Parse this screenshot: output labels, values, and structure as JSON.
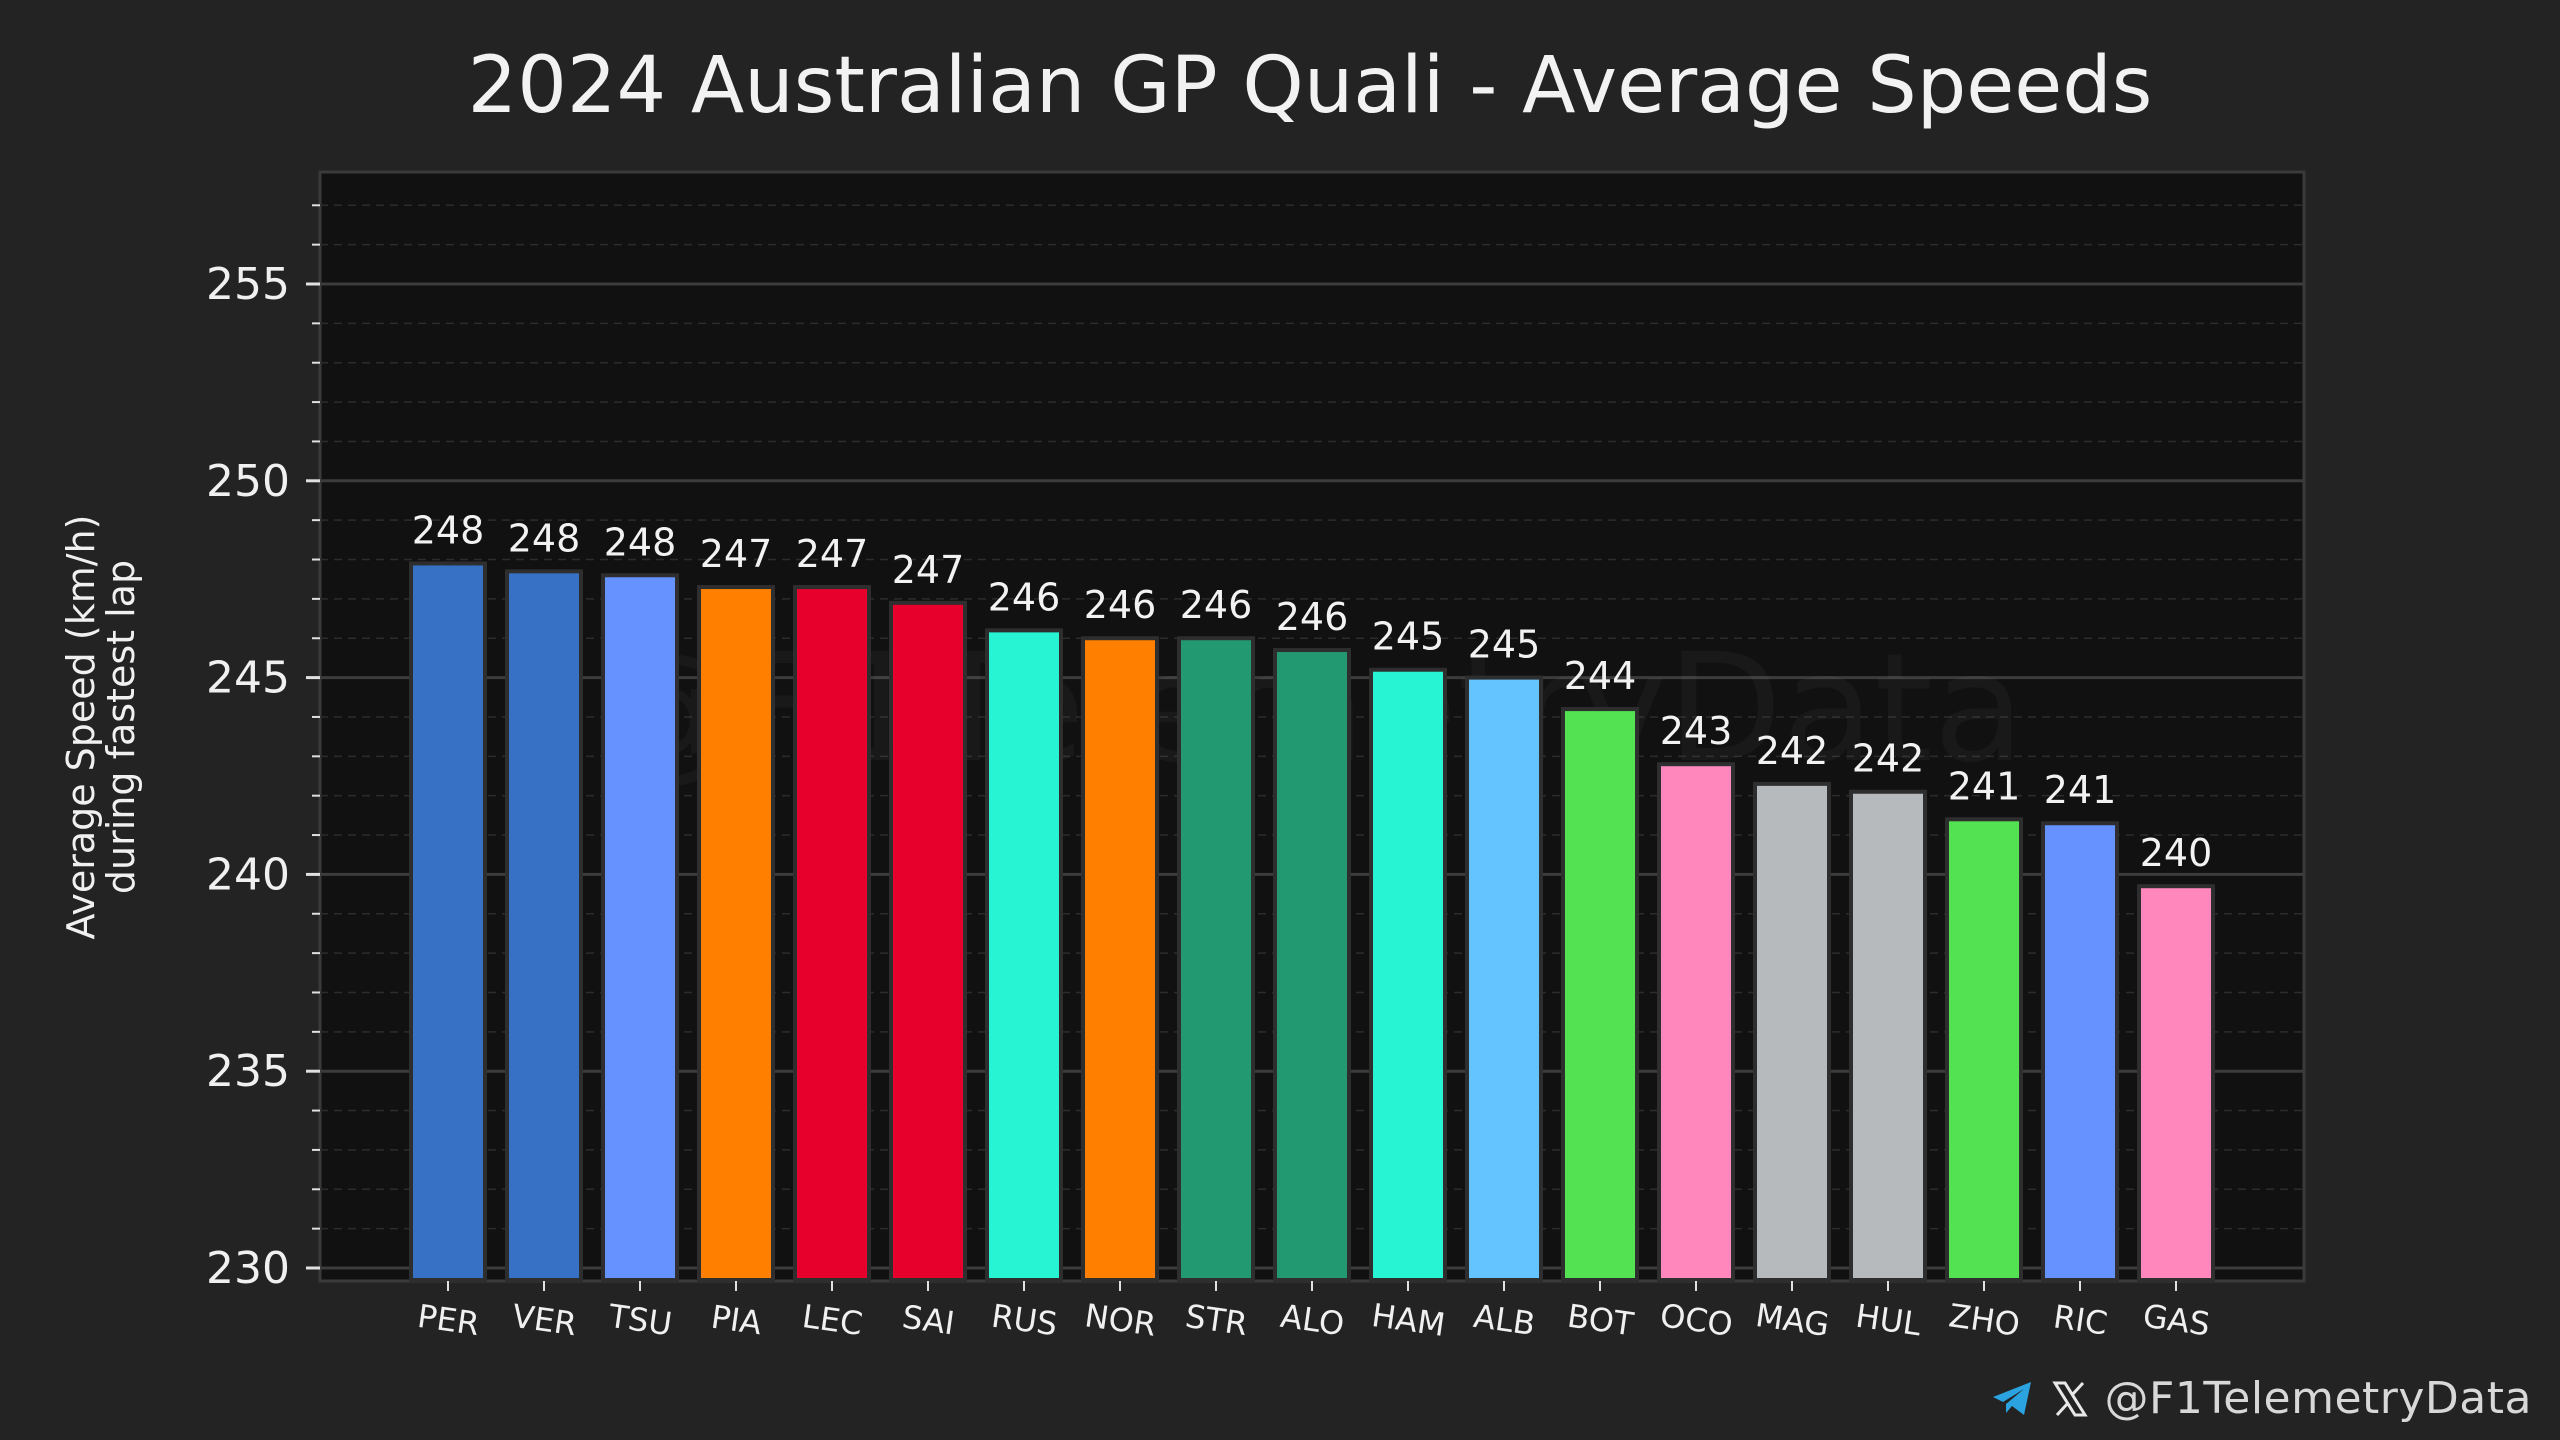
{
  "chart_data": {
    "type": "bar",
    "title": "2024 Australian GP Quali - Average Speeds",
    "ylabel_line1": "Average Speed (km/h)",
    "ylabel_line2": "during fastest lap",
    "xlabel": "",
    "ylim": [
      230,
      258
    ],
    "yticks": [
      230,
      235,
      240,
      245,
      250,
      255
    ],
    "watermark": "@F1TelemetryData",
    "categories": [
      "PER",
      "VER",
      "TSU",
      "PIA",
      "LEC",
      "SAI",
      "RUS",
      "NOR",
      "STR",
      "ALO",
      "HAM",
      "ALB",
      "BOT",
      "OCO",
      "MAG",
      "HUL",
      "ZHO",
      "RIC",
      "GAS"
    ],
    "values": [
      247.9,
      247.7,
      247.6,
      247.3,
      247.3,
      246.9,
      246.2,
      246.0,
      246.0,
      245.7,
      245.2,
      245.0,
      244.2,
      242.8,
      242.3,
      242.1,
      241.4,
      241.3,
      239.7
    ],
    "labels": [
      "248",
      "248",
      "248",
      "247",
      "247",
      "247",
      "246",
      "246",
      "246",
      "246",
      "245",
      "245",
      "244",
      "243",
      "242",
      "242",
      "241",
      "241",
      "240"
    ],
    "colors": [
      "#3671C6",
      "#3671C6",
      "#6692FF",
      "#FF8000",
      "#E8002D",
      "#E8002D",
      "#27F4D2",
      "#FF8000",
      "#229971",
      "#229971",
      "#27F4D2",
      "#64C4FF",
      "#52E252",
      "#FF87BC",
      "#B6BABD",
      "#B6BABD",
      "#52E252",
      "#6692FF",
      "#FF87BC"
    ]
  },
  "footer": {
    "handle": "@F1TelemetryData",
    "telegram_icon": "telegram-icon",
    "x_icon": "x-logo-icon"
  }
}
